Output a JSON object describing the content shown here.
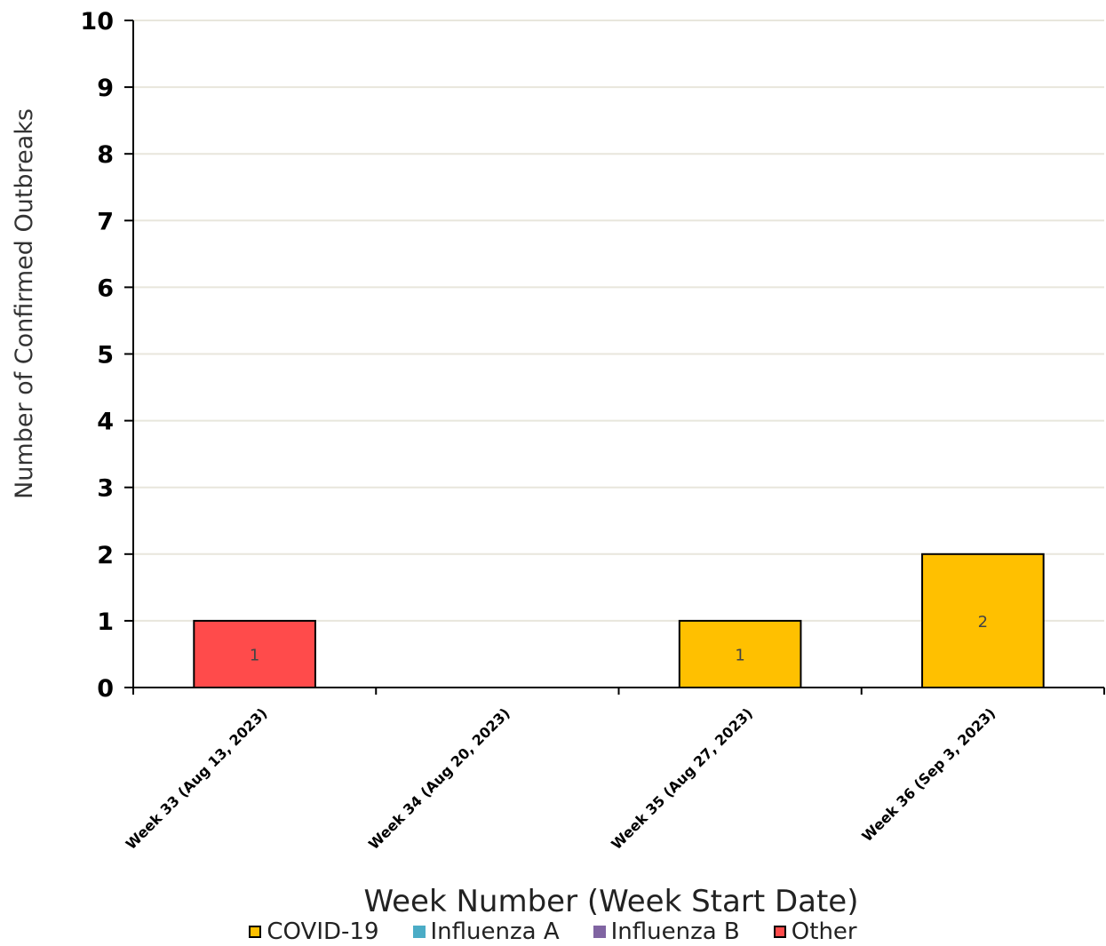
{
  "chart_data": {
    "type": "bar",
    "title": "",
    "xlabel": "Week Number (Week Start Date)",
    "ylabel": "Number of Confirmed Outbreaks",
    "ylim": [
      0,
      10
    ],
    "yticks": [
      "0",
      "1",
      "2",
      "3",
      "4",
      "5",
      "6",
      "7",
      "8",
      "9",
      "10"
    ],
    "grid": true,
    "stacked": true,
    "legend_position": "bottom",
    "categories": [
      "Week 33 (Aug 13, 2023)",
      "Week 34 (Aug 20, 2023)",
      "Week 35 (Aug 27, 2023)",
      "Week 36 (Sep 3, 2023)"
    ],
    "series": [
      {
        "name": "COVID-19",
        "color": "#FFC000",
        "values": [
          0,
          0,
          1,
          2
        ]
      },
      {
        "name": "Influenza A",
        "color": "#4BACC6",
        "values": [
          0,
          0,
          0,
          0
        ]
      },
      {
        "name": "Influenza B",
        "color": "#8064A2",
        "values": [
          0,
          0,
          0,
          0
        ]
      },
      {
        "name": "Other",
        "color": "#FF4B4B",
        "values": [
          1,
          0,
          0,
          0
        ]
      }
    ]
  }
}
